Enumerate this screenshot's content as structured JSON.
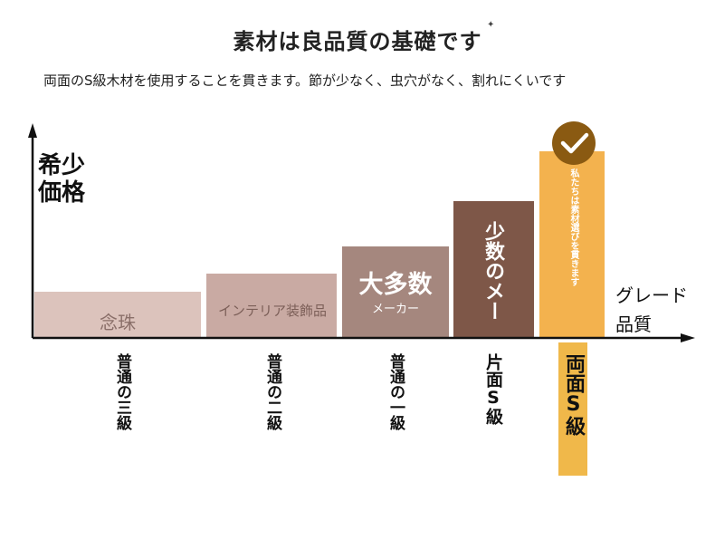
{
  "header": {
    "title": "素材は良品質の基礎です",
    "subtitle": "両面のS級木材を使用することを貫きます。節が少なく、虫穴がなく、割れにくいです"
  },
  "axes": {
    "y_label_line1": "希少",
    "y_label_line2": "価格",
    "x_label_line1": "グレード",
    "x_label_line2": "品質"
  },
  "chart_data": {
    "type": "bar",
    "categories": [
      "普通の三級",
      "普通の二級",
      "普通の一級",
      "片面S級",
      "両面S級"
    ],
    "values": [
      1,
      1.4,
      2,
      3,
      4.1
    ],
    "bar_labels": [
      "念珠",
      "インテリア装飾品",
      "大多数",
      "少数のメー",
      "私たちは素材選びを貫きます"
    ],
    "bar_sublabels": [
      "",
      "",
      "メーカー",
      "",
      ""
    ],
    "colors": [
      "#dcc3bc",
      "#c9aaa3",
      "#a5877e",
      "#7e5748",
      "#f3b24e"
    ],
    "highlight_index": 4,
    "grid": false,
    "xlabel": "グレード 品質",
    "ylabel": "希少 価格"
  },
  "badge": {
    "icon": "check-circle-icon",
    "color": "#8a5a12"
  },
  "grades": {
    "g1": "普通の三級",
    "g2": "普通の二級",
    "g3": "普通の一級",
    "g4": "片面S級",
    "g5": "両面S級"
  }
}
